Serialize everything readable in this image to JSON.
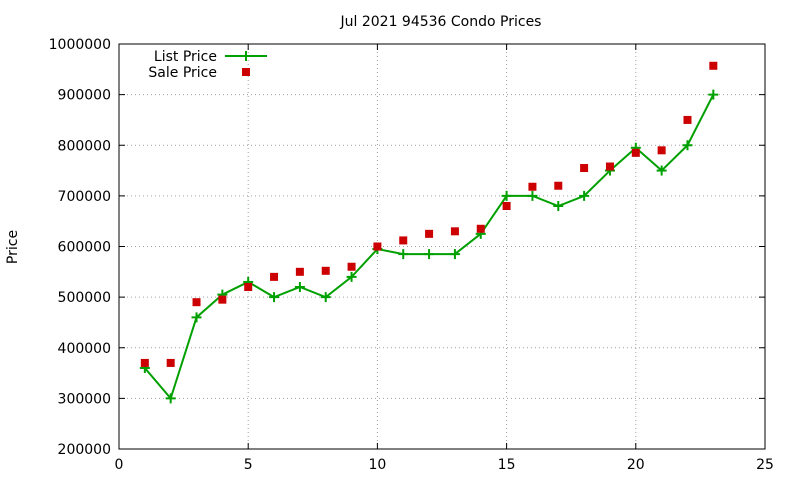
{
  "chart_data": {
    "type": "line",
    "title": "Jul 2021 94536 Condo Prices",
    "xlabel": "",
    "ylabel": "Price",
    "xlim": [
      0,
      25
    ],
    "ylim": [
      200000,
      1000000
    ],
    "xticks": [
      0,
      5,
      10,
      15,
      20,
      25
    ],
    "yticks": [
      200000,
      300000,
      400000,
      500000,
      600000,
      700000,
      800000,
      900000,
      1000000
    ],
    "grid": true,
    "legend_position": "top-left",
    "series": [
      {
        "name": "List Price",
        "style": "linespoints",
        "color": "#00a000",
        "marker": "plus",
        "x": [
          1,
          2,
          3,
          4,
          5,
          6,
          7,
          8,
          9,
          10,
          11,
          12,
          13,
          14,
          15,
          16,
          17,
          18,
          19,
          20,
          21,
          22,
          23
        ],
        "y": [
          360000,
          300000,
          460000,
          505000,
          530000,
          500000,
          520000,
          500000,
          540000,
          595000,
          585000,
          585000,
          585000,
          625000,
          700000,
          700000,
          680000,
          700000,
          750000,
          795000,
          750000,
          800000,
          900000
        ]
      },
      {
        "name": "Sale Price",
        "style": "points",
        "color": "#cc0000",
        "marker": "square",
        "x": [
          1,
          2,
          3,
          4,
          5,
          6,
          7,
          8,
          9,
          10,
          11,
          12,
          13,
          14,
          15,
          16,
          17,
          18,
          19,
          20,
          21,
          22,
          23
        ],
        "y": [
          370000,
          370000,
          490000,
          495000,
          520000,
          540000,
          550000,
          552000,
          560000,
          600000,
          612000,
          625000,
          630000,
          635000,
          680000,
          718000,
          720000,
          755000,
          758000,
          785000,
          790000,
          850000,
          957000
        ]
      }
    ]
  }
}
